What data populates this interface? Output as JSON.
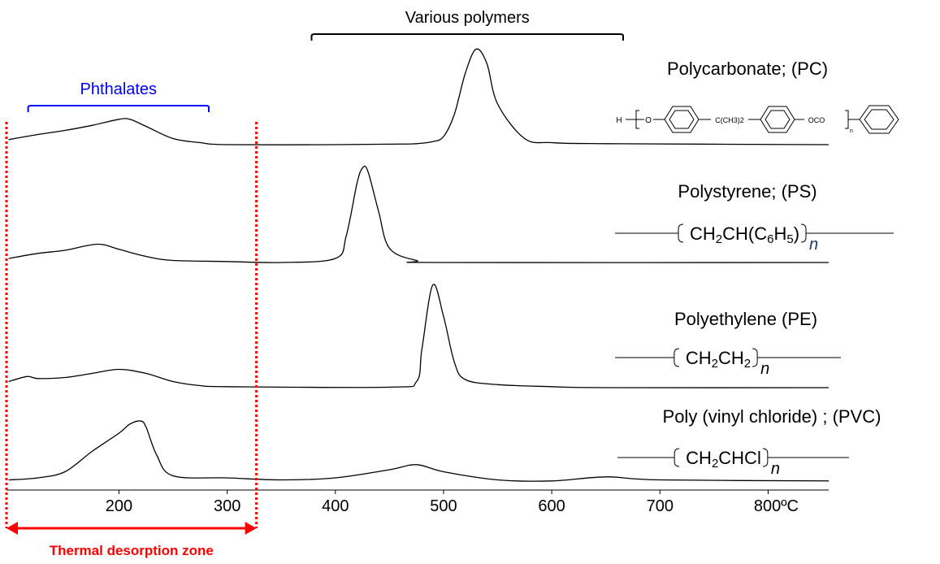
{
  "chart_data": {
    "type": "line",
    "xlim": [
      96,
      856
    ],
    "xticks": [
      200,
      300,
      400,
      500,
      600,
      700,
      {
        "value": 800,
        "label": "800ºC"
      }
    ],
    "ylim": [
      0,
      110
    ],
    "series": [
      {
        "name": "Polycarbonate; (PC)",
        "color": "#000000",
        "x": [
          98,
          125,
          150,
          175,
          200,
          210,
          225,
          250,
          275,
          300,
          400,
          450,
          475,
          490,
          500,
          510,
          520,
          530,
          540,
          550,
          575,
          600,
          650,
          856
        ],
        "values": [
          5,
          10,
          14,
          19,
          25,
          25,
          18,
          6,
          2,
          0,
          0,
          0.5,
          1,
          3,
          8,
          30,
          70,
          94,
          80,
          40,
          6,
          2,
          1,
          0
        ],
        "structure": [
          "H",
          "O",
          "C(CH3)2",
          "OCO",
          "n"
        ]
      },
      {
        "name": "Polystyrene; (PS)",
        "color": "#000000",
        "x": [
          98,
          125,
          150,
          180,
          200,
          225,
          250,
          300,
          350,
          400,
          410,
          420,
          425,
          430,
          440,
          450,
          475,
          500,
          856
        ],
        "values": [
          4,
          9,
          12,
          18,
          13,
          6,
          2,
          1,
          0,
          4,
          26,
          78,
          93,
          90,
          50,
          14,
          2,
          0,
          0
        ],
        "formula": [
          "CH",
          "2",
          "CH(C",
          "6",
          "H",
          "5",
          ")"
        ],
        "repeat": "n"
      },
      {
        "name": "Polyethylene (PE)",
        "color": "#000000",
        "x": [
          98,
          115,
          125,
          150,
          175,
          200,
          225,
          250,
          275,
          300,
          450,
          475,
          480,
          490,
          500,
          510,
          520,
          550,
          600,
          650,
          856
        ],
        "values": [
          6,
          11,
          9,
          10,
          14,
          18,
          14,
          6,
          2,
          1,
          0.5,
          6,
          38,
          101,
          70,
          25,
          8,
          3,
          1,
          0,
          0
        ],
        "formula": [
          "CH",
          "2",
          "CH",
          "2"
        ],
        "repeat": "n"
      },
      {
        "name": "Poly (vinyl chloride) ; (PVC)",
        "color": "#000000",
        "x": [
          98,
          125,
          150,
          175,
          200,
          210,
          220,
          225,
          235,
          250,
          300,
          350,
          400,
          450,
          475,
          500,
          550,
          600,
          650,
          700,
          856
        ],
        "values": [
          2,
          4,
          10,
          30,
          48,
          57,
          60,
          54,
          26,
          6,
          4,
          2,
          4,
          12,
          17,
          10,
          2,
          1,
          5,
          2,
          1
        ],
        "formula": [
          "CH",
          "2",
          "CHCl"
        ],
        "repeat": "n"
      }
    ],
    "annotations": [
      {
        "text": "Phthalates",
        "color": "#0000ff",
        "span": [
          116,
          283
        ]
      },
      {
        "text": "Various polymers",
        "color": "#000000",
        "span": [
          378,
          666
        ]
      }
    ],
    "zone": {
      "label": "Thermal desorption zone",
      "color": "#ff0000",
      "span": [
        96,
        327
      ]
    }
  }
}
